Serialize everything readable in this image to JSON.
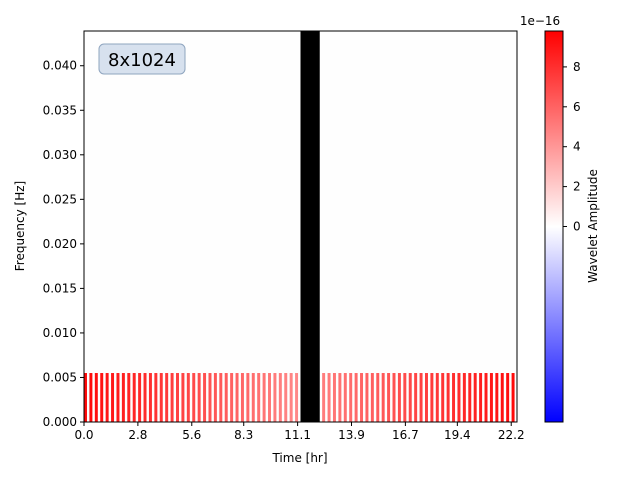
{
  "chart_data": {
    "type": "heatmap",
    "title": "",
    "annotation": "8x1024",
    "xlabel": "Time [hr]",
    "ylabel": "Frequency [Hz]",
    "xlim": [
      0.0,
      22.5
    ],
    "ylim": [
      0.0,
      0.0439
    ],
    "x_ticks": [
      "0.0",
      "2.8",
      "5.6",
      "8.3",
      "11.1",
      "13.9",
      "16.7",
      "19.4",
      "22.2"
    ],
    "x_tick_values": [
      0.0,
      2.8,
      5.6,
      8.3,
      11.1,
      13.9,
      16.7,
      19.4,
      22.2
    ],
    "y_ticks": [
      "0.000",
      "0.005",
      "0.010",
      "0.015",
      "0.020",
      "0.025",
      "0.030",
      "0.035",
      "0.040"
    ],
    "y_tick_values": [
      0.0,
      0.005,
      0.01,
      0.015,
      0.02,
      0.025,
      0.03,
      0.035,
      0.04
    ],
    "grid": false,
    "n_time_bins": 1024,
    "n_freq_bins": 8,
    "freq_bin_edges": [
      0.0,
      0.0055,
      0.011,
      0.0165,
      0.022,
      0.0275,
      0.033,
      0.0385,
      0.0439
    ],
    "low_band_pattern": "alternating stripes, peak amplitude near both ends and lowest near the centre",
    "low_band_amplitude_end": 9.5e-16,
    "low_band_amplitude_center": 4.5e-16,
    "upper_bands_amplitude": 0.0,
    "masked_region": {
      "x_start": 11.25,
      "x_end": 12.25,
      "color": "#000000"
    },
    "colorbar": {
      "label": "Wavelet Amplitude",
      "offset_text": "1e−16",
      "ticks": [
        "0",
        "2",
        "4",
        "6",
        "8"
      ],
      "tick_values": [
        0,
        2,
        4,
        6,
        8
      ],
      "range": [
        -9.8,
        9.8
      ],
      "colormap": "bwr",
      "color_low": "#0000ff",
      "color_mid": "#ffffff",
      "color_high": "#ff0000"
    }
  }
}
